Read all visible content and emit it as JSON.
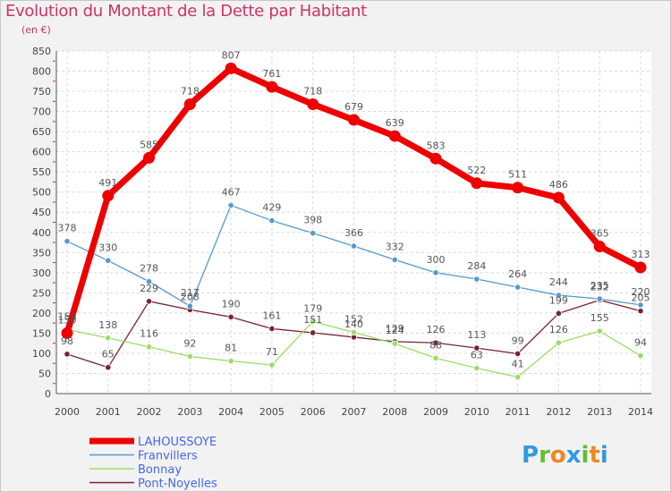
{
  "title": "Evolution du Montant de la Dette par Habitant",
  "subtitle": "(en €)",
  "brand": "Proxiti",
  "chart_data": {
    "type": "line",
    "x": [
      2000,
      2001,
      2002,
      2003,
      2004,
      2005,
      2006,
      2007,
      2008,
      2009,
      2010,
      2011,
      2012,
      2013,
      2014
    ],
    "ylim": [
      0,
      850
    ],
    "yticks": [
      0,
      50,
      100,
      150,
      200,
      250,
      300,
      350,
      400,
      450,
      500,
      550,
      600,
      650,
      700,
      750,
      800,
      850
    ],
    "grid": true,
    "legend_position": "bottom-left",
    "series": [
      {
        "name": "LAHOUSSOYE",
        "color": "#ee0000",
        "values": [
          150,
          491,
          585,
          718,
          807,
          761,
          718,
          679,
          639,
          583,
          522,
          511,
          486,
          365,
          313
        ]
      },
      {
        "name": "Franvillers",
        "color": "#5599cc",
        "values": [
          378,
          330,
          278,
          217,
          467,
          429,
          398,
          366,
          332,
          300,
          284,
          264,
          244,
          235,
          220
        ]
      },
      {
        "name": "Bonnay",
        "color": "#99dd66",
        "values": [
          159,
          138,
          116,
          92,
          81,
          71,
          179,
          152,
          124,
          88,
          63,
          41,
          126,
          155,
          94
        ]
      },
      {
        "name": "Pont-Noyelles",
        "color": "#772233",
        "values": [
          98,
          65,
          229,
          208,
          190,
          161,
          151,
          140,
          129,
          126,
          113,
          99,
          199,
          232,
          205
        ]
      }
    ],
    "data_labels": {
      "LAHOUSSOYE": [
        "150",
        "491",
        "585",
        "718",
        "807",
        "761",
        "718",
        "679",
        "639",
        "583",
        "522",
        "511",
        "486",
        "365",
        "313"
      ],
      "Franvillers": [
        "378",
        "330",
        "278",
        "217",
        "467",
        "429",
        "398",
        "366",
        "332",
        "300",
        "284",
        "264",
        "244",
        "235",
        "220"
      ],
      "Bonnay": [
        "159",
        "138",
        "116",
        "92",
        "81",
        "71",
        "179",
        "152",
        "124",
        "88",
        "63",
        "41",
        "126",
        "155",
        "94"
      ],
      "Pont-Noyelles": [
        "98",
        "65",
        "229",
        "208",
        "190",
        "161",
        "151",
        "140",
        "129",
        "126",
        "113",
        "99",
        "199",
        "232",
        "205"
      ]
    }
  }
}
